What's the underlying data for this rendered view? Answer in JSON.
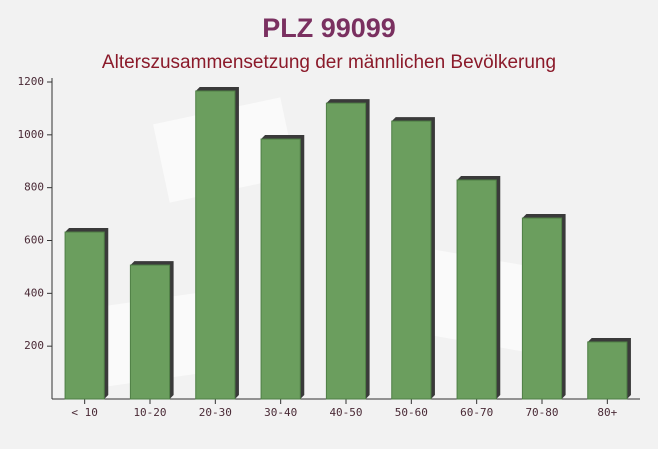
{
  "chart_data": {
    "type": "bar",
    "title": "PLZ 99099",
    "subtitle": "Alterszusammensetzung der männlichen Bevölkerung",
    "categories": [
      "< 10",
      "10-20",
      "20-30",
      "30-40",
      "40-50",
      "50-60",
      "60-70",
      "70-80",
      "80+"
    ],
    "values": [
      632,
      507,
      1166,
      984,
      1120,
      1052,
      829,
      685,
      216
    ],
    "color": "#6b9e5e",
    "ylim": [
      0,
      1200
    ],
    "yticks": [
      200,
      400,
      600,
      800,
      1000,
      1200
    ],
    "grid": false
  }
}
